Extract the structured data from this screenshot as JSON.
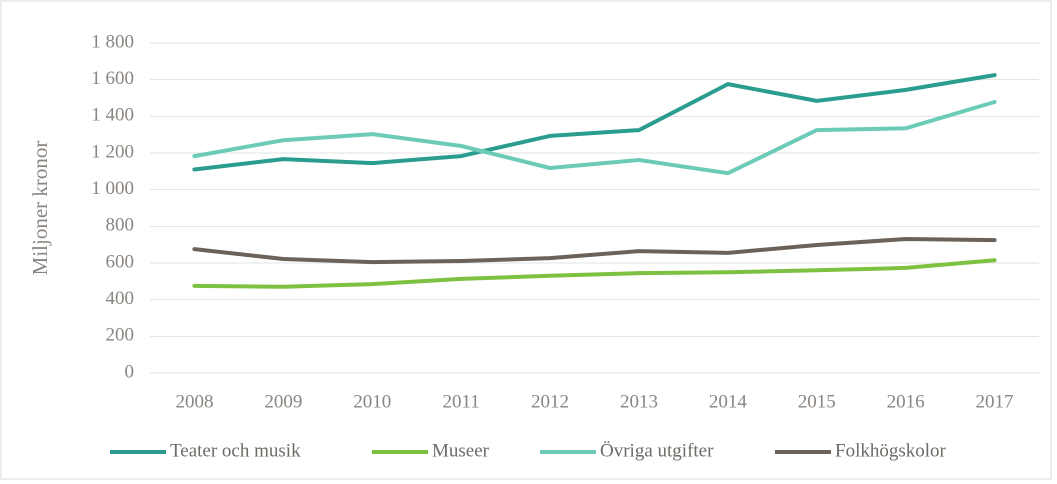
{
  "chart_data": {
    "type": "line",
    "y_label": "Miljoner kronor",
    "categories": [
      "2008",
      "2009",
      "2010",
      "2011",
      "2012",
      "2013",
      "2014",
      "2015",
      "2016",
      "2017"
    ],
    "series": [
      {
        "name": "Teater och musik",
        "color": "#2a9d8f",
        "values": [
          1110,
          1167,
          1145,
          1183,
          1293,
          1325,
          1576,
          1484,
          1544,
          1625
        ]
      },
      {
        "name": "Museer",
        "color": "#7dc142",
        "values": [
          475,
          470,
          485,
          513,
          530,
          545,
          550,
          560,
          573,
          615
        ]
      },
      {
        "name": "Övriga utgifter",
        "color": "#6ccbb7",
        "values": [
          1183,
          1270,
          1303,
          1238,
          1118,
          1162,
          1090,
          1325,
          1335,
          1478
        ]
      },
      {
        "name": "Folkhögskolor",
        "color": "#6b625a",
        "values": [
          676,
          622,
          605,
          611,
          627,
          665,
          655,
          698,
          731,
          725
        ]
      }
    ],
    "ylim": [
      0,
      1800
    ],
    "yticks": [
      0,
      200,
      400,
      600,
      800,
      {
        "value": 1000,
        "label": "1 000"
      },
      {
        "value": 1200,
        "label": "1 200"
      },
      {
        "value": 1400,
        "label": "1 400"
      },
      {
        "value": 1600,
        "label": "1 600"
      },
      {
        "value": 1800,
        "label": "1 800"
      }
    ],
    "grid": true,
    "legend": "bottom"
  }
}
